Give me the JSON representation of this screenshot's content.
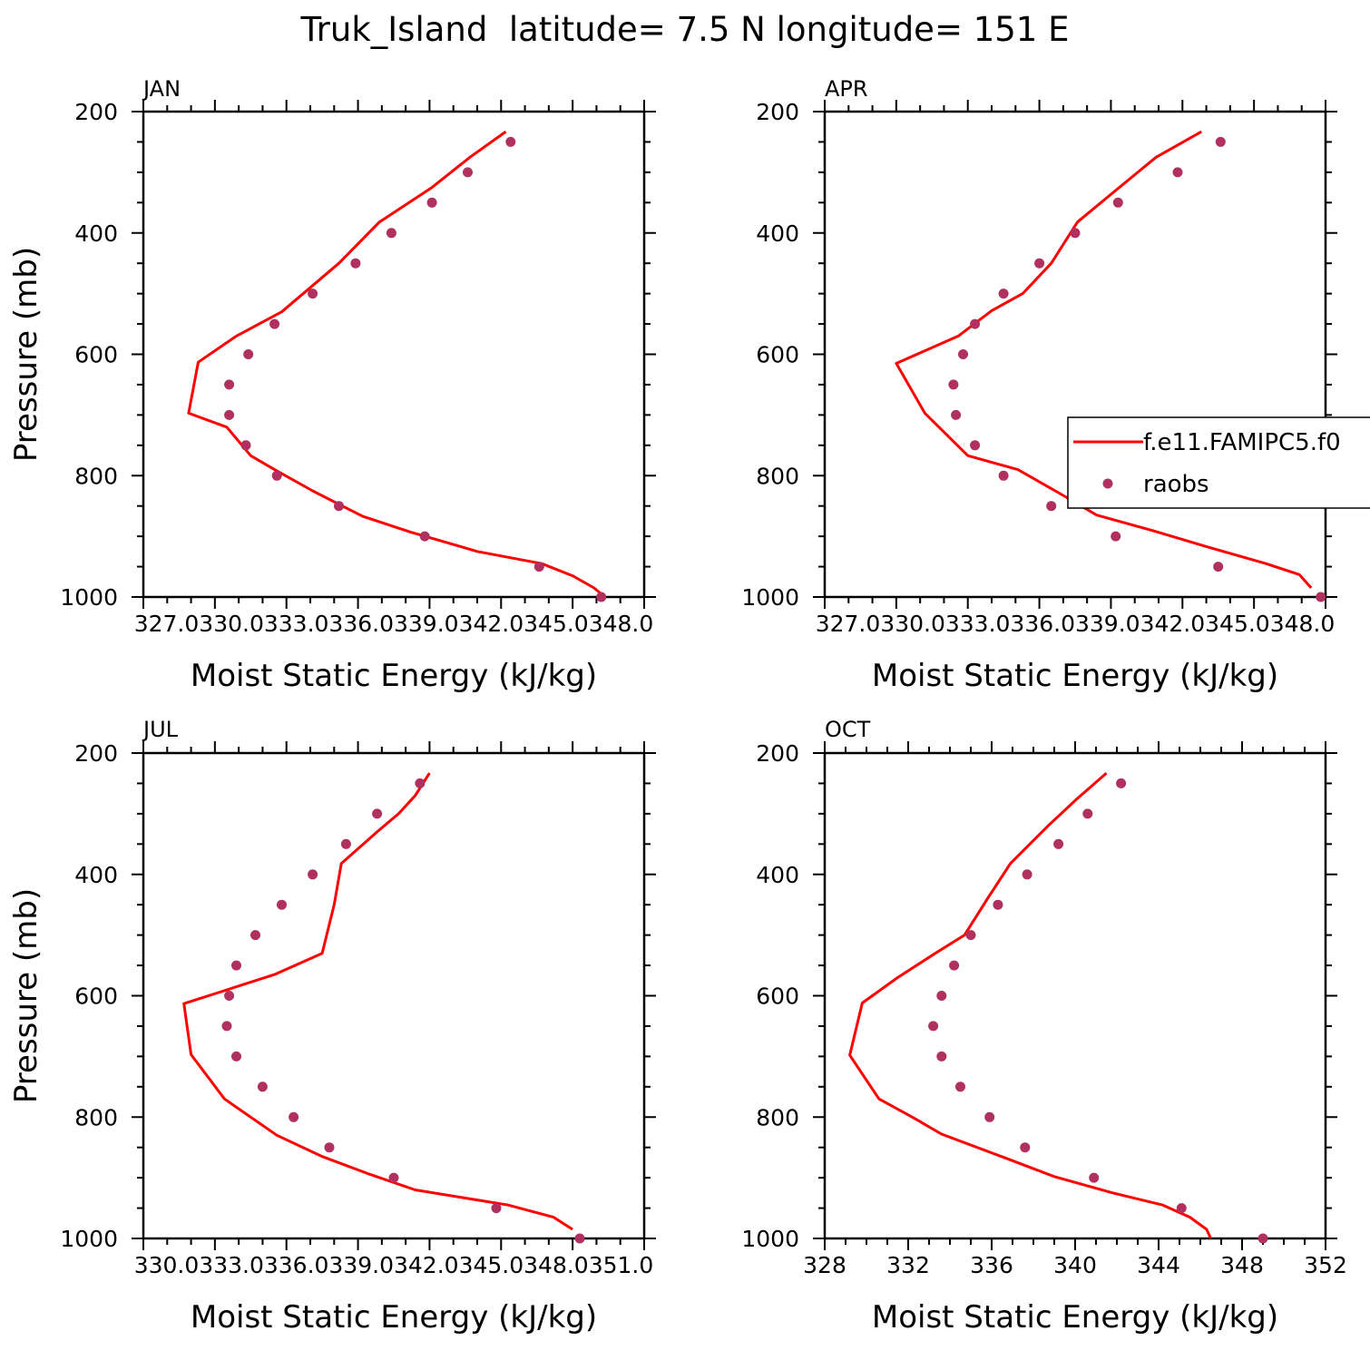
{
  "title": "Truk_Island  latitude= 7.5 N longitude= 151 E",
  "legend": {
    "model_label": "f.e11.FAMIPC5.f0",
    "obs_label": "raobs"
  },
  "colors": {
    "model": "#ff0000",
    "obs": "#b03060",
    "axis": "#000000"
  },
  "chart_data": [
    {
      "type": "line",
      "panel": "JAN",
      "xlabel": "Moist Static Energy (kJ/kg)",
      "ylabel": "Pressure (mb)",
      "xlim": [
        327,
        348
      ],
      "ylim": [
        200,
        1000
      ],
      "y_reversed": true,
      "xticks": [
        327,
        330,
        333,
        336,
        339,
        342,
        345,
        348
      ],
      "xtick_labels": [
        "327.0",
        "330.0",
        "333.0",
        "336.0",
        "339.0",
        "342.0",
        "345.0",
        "348.0"
      ],
      "xtick_label_mode": "concat",
      "yticks": [
        200,
        400,
        600,
        800,
        1000
      ],
      "ytick_labels": [
        "200",
        "400",
        "600",
        "800",
        "1000"
      ],
      "series": [
        {
          "name": "f.e11.FAMIPC5.f0",
          "kind": "line",
          "x": [
            342.2,
            340.7,
            339.1,
            336.9,
            335.2,
            332.8,
            330.9,
            329.3,
            328.9,
            330.5,
            331.5,
            332.5,
            334.1,
            336.2,
            338.2,
            341.0,
            343.7,
            345.0,
            345.9,
            346.2
          ],
          "y": [
            233,
            275,
            325,
            382,
            450,
            530,
            570,
            613,
            697,
            720,
            767,
            790,
            825,
            867,
            893,
            925,
            945,
            965,
            985,
            995
          ]
        },
        {
          "name": "raobs",
          "kind": "points",
          "x": [
            342.4,
            340.6,
            339.1,
            337.4,
            335.9,
            334.1,
            332.5,
            331.4,
            330.6,
            330.6,
            331.3,
            332.6,
            335.2,
            338.8,
            343.6,
            346.2
          ],
          "y": [
            250,
            300,
            350,
            400,
            450,
            500,
            550,
            600,
            650,
            700,
            750,
            800,
            850,
            900,
            950,
            1000
          ]
        }
      ]
    },
    {
      "type": "line",
      "panel": "APR",
      "xlabel": "Moist Static Energy (kJ/kg)",
      "ylabel": "",
      "xlim": [
        327,
        348
      ],
      "ylim": [
        200,
        1000
      ],
      "y_reversed": true,
      "xticks": [
        327,
        330,
        333,
        336,
        339,
        342,
        345,
        348
      ],
      "xtick_labels": [
        "327.0",
        "330.0",
        "333.0",
        "336.0",
        "339.0",
        "342.0",
        "345.0",
        "348.0"
      ],
      "xtick_label_mode": "concat",
      "yticks": [
        200,
        400,
        600,
        800,
        1000
      ],
      "ytick_labels": [
        "200",
        "400",
        "600",
        "800",
        "1000"
      ],
      "series": [
        {
          "name": "f.e11.FAMIPC5.f0",
          "kind": "line",
          "x": [
            342.8,
            340.9,
            339.2,
            337.6,
            336.5,
            335.3,
            334.0,
            332.6,
            330.0,
            331.2,
            333.0,
            335.1,
            336.8,
            338.4,
            340.7,
            343.1,
            345.5,
            346.9,
            347.4
          ],
          "y": [
            233,
            275,
            330,
            382,
            450,
            500,
            528,
            570,
            615,
            697,
            767,
            790,
            828,
            865,
            890,
            918,
            945,
            963,
            985
          ]
        },
        {
          "name": "raobs",
          "kind": "points",
          "x": [
            343.6,
            341.8,
            339.3,
            337.5,
            336.0,
            334.5,
            333.3,
            332.8,
            332.4,
            332.5,
            333.3,
            334.5,
            336.5,
            339.2,
            343.5,
            347.8
          ],
          "y": [
            250,
            300,
            350,
            400,
            450,
            500,
            550,
            600,
            650,
            700,
            750,
            800,
            850,
            900,
            950,
            1000
          ]
        }
      ]
    },
    {
      "type": "line",
      "panel": "JUL",
      "xlabel": "Moist Static Energy (kJ/kg)",
      "ylabel": "Pressure (mb)",
      "xlim": [
        330,
        351
      ],
      "ylim": [
        200,
        1000
      ],
      "y_reversed": true,
      "xticks": [
        330,
        333,
        336,
        339,
        342,
        345,
        348,
        351
      ],
      "xtick_labels": [
        "330.0",
        "333.0",
        "336.0",
        "339.0",
        "342.0",
        "345.0",
        "348.0",
        "351.0"
      ],
      "xtick_label_mode": "concat",
      "yticks": [
        200,
        400,
        600,
        800,
        1000
      ],
      "ytick_labels": [
        "200",
        "400",
        "600",
        "800",
        "1000"
      ],
      "series": [
        {
          "name": "f.e11.FAMIPC5.f0",
          "kind": "line",
          "x": [
            342.0,
            341.4,
            340.7,
            339.8,
            338.3,
            338.0,
            337.5,
            335.5,
            331.7,
            332.0,
            333.4,
            335.6,
            337.5,
            339.4,
            341.4,
            345.3,
            347.2,
            348.0
          ],
          "y": [
            233,
            270,
            300,
            330,
            382,
            450,
            530,
            565,
            613,
            697,
            770,
            830,
            865,
            893,
            920,
            945,
            965,
            985
          ]
        },
        {
          "name": "raobs",
          "kind": "points",
          "x": [
            341.6,
            339.8,
            338.5,
            337.1,
            335.8,
            334.7,
            333.9,
            333.6,
            333.5,
            333.9,
            335.0,
            336.3,
            337.8,
            340.5,
            344.8,
            348.3
          ],
          "y": [
            250,
            300,
            350,
            400,
            450,
            500,
            550,
            600,
            650,
            700,
            750,
            800,
            850,
            900,
            950,
            1000
          ]
        }
      ]
    },
    {
      "type": "line",
      "panel": "OCT",
      "xlabel": "Moist Static Energy (kJ/kg)",
      "ylabel": "",
      "xlim": [
        328,
        352
      ],
      "ylim": [
        200,
        1000
      ],
      "y_reversed": true,
      "xticks": [
        328,
        332,
        336,
        340,
        344,
        348,
        352
      ],
      "xtick_labels": [
        "328",
        "332",
        "336",
        "340",
        "344",
        "348",
        "352"
      ],
      "xtick_label_mode": "spaced",
      "yticks": [
        200,
        400,
        600,
        800,
        1000
      ],
      "ytick_labels": [
        "200",
        "400",
        "600",
        "800",
        "1000"
      ],
      "series": [
        {
          "name": "f.e11.FAMIPC5.f0",
          "kind": "line",
          "x": [
            341.5,
            340.1,
            338.7,
            336.9,
            335.8,
            334.7,
            333.3,
            331.5,
            329.8,
            329.2,
            330.6,
            332.2,
            333.6,
            336.7,
            339.0,
            341.8,
            344.2,
            345.5,
            346.3,
            346.5
          ],
          "y": [
            233,
            275,
            320,
            382,
            440,
            500,
            530,
            570,
            612,
            698,
            770,
            800,
            828,
            868,
            898,
            925,
            945,
            965,
            985,
            1000
          ]
        },
        {
          "name": "raobs",
          "kind": "points",
          "x": [
            342.2,
            340.6,
            339.2,
            337.7,
            336.3,
            335.0,
            334.2,
            333.6,
            333.2,
            333.6,
            334.5,
            335.9,
            337.6,
            340.9,
            345.1,
            349.0
          ],
          "y": [
            250,
            300,
            350,
            400,
            450,
            500,
            550,
            600,
            650,
            700,
            750,
            800,
            850,
            900,
            950,
            1000
          ]
        }
      ]
    }
  ]
}
